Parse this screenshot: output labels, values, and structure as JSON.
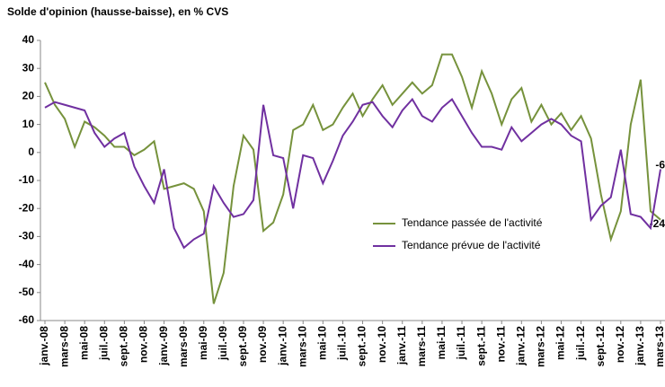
{
  "chart_data": {
    "type": "line",
    "title": "Solde d'opinion (hausse-baisse), en % CVS",
    "categories": [
      "janv.-08",
      null,
      "mars-08",
      null,
      "mai-08",
      null,
      "juil.-08",
      null,
      "sept.-08",
      null,
      "nov.-08",
      null,
      "janv.-09",
      null,
      "mars-09",
      null,
      "mai-09",
      null,
      "juil.-09",
      null,
      "sept.-09",
      null,
      "nov.-09",
      null,
      "janv.-10",
      null,
      "mars-10",
      null,
      "mai-10",
      null,
      "juil.-10",
      null,
      "sept.-10",
      null,
      "nov.-10",
      null,
      "janv.-11",
      null,
      "mars-11",
      null,
      "mai-11",
      null,
      "juil.-11",
      null,
      "sept.-11",
      null,
      "nov.-11",
      null,
      "janv.-12",
      null,
      "mars-12",
      null,
      "mai-12",
      null,
      "juil.-12",
      null,
      "sept.-12",
      null,
      "nov.-12",
      null,
      "janv.-13",
      null,
      "mars-13"
    ],
    "series": [
      {
        "name": "Tendance passée de l'activité",
        "color": "#76923c",
        "values": [
          25,
          17,
          12,
          2,
          11,
          9,
          6,
          2,
          2,
          -1,
          1,
          4,
          -13,
          -12,
          -11,
          -13,
          -21,
          -54,
          -43,
          -12,
          6,
          1,
          -28,
          -25,
          -15,
          8,
          10,
          17,
          8,
          10,
          16,
          21,
          13,
          19,
          24,
          17,
          21,
          25,
          21,
          24,
          35,
          35,
          27,
          16,
          29,
          21,
          10,
          19,
          23,
          11,
          17,
          10,
          14,
          8,
          13,
          5,
          -15,
          -31,
          -21,
          10,
          26,
          -21,
          -24
        ]
      },
      {
        "name": "Tendance prévue de l'activité",
        "color": "#7030a0",
        "values": [
          16,
          18,
          17,
          16,
          15,
          7,
          2,
          5,
          7,
          -5,
          -12,
          -18,
          -6,
          -27,
          -34,
          -31,
          -29,
          -12,
          -18,
          -23,
          -22,
          -17,
          17,
          -1,
          -2,
          -20,
          -1,
          -2,
          -11,
          -3,
          6,
          11,
          17,
          18,
          13,
          9,
          15,
          19,
          13,
          11,
          16,
          19,
          13,
          7,
          2,
          2,
          1,
          9,
          4,
          7,
          10,
          12,
          10,
          6,
          4,
          -24,
          -19,
          -16,
          1,
          -22,
          -23,
          -27,
          -6
        ]
      }
    ],
    "ylim": [
      -60,
      40
    ],
    "yticks": [
      -60,
      -50,
      -40,
      -30,
      -20,
      -10,
      0,
      10,
      20,
      30,
      40
    ],
    "grid": false
  }
}
